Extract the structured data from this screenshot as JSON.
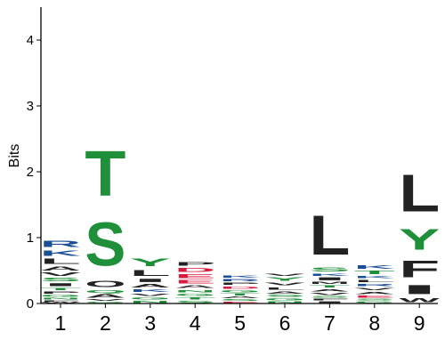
{
  "chart_data": {
    "type": "sequence-logo",
    "ylabel": "Bits",
    "ylim": [
      0,
      4.5
    ],
    "yticks": [
      0,
      1,
      2,
      3,
      4
    ],
    "positions": [
      {
        "label": "1",
        "letters": [
          {
            "char": "W",
            "height": 0.02,
            "color": "#222222"
          },
          {
            "char": "F",
            "height": 0.03,
            "color": "#222222"
          },
          {
            "char": "N",
            "height": 0.04,
            "color": "#1f8f3a"
          },
          {
            "char": "G",
            "height": 0.05,
            "color": "#1f8f3a"
          },
          {
            "char": "P",
            "height": 0.05,
            "color": "#222222"
          },
          {
            "char": "T",
            "height": 0.06,
            "color": "#1f8f3a"
          },
          {
            "char": "I",
            "height": 0.07,
            "color": "#222222"
          },
          {
            "char": "S",
            "height": 0.08,
            "color": "#1f8f3a"
          },
          {
            "char": "V",
            "height": 0.08,
            "color": "#222222"
          },
          {
            "char": "A",
            "height": 0.1,
            "color": "#222222"
          },
          {
            "char": "L",
            "height": 0.12,
            "color": "#222222"
          },
          {
            "char": "K",
            "height": 0.13,
            "color": "#1a4f96"
          },
          {
            "char": "R",
            "height": 0.15,
            "color": "#1a4f96"
          }
        ]
      },
      {
        "label": "2",
        "letters": [
          {
            "char": "G",
            "height": 0.03,
            "color": "#1f8f3a"
          },
          {
            "char": "V",
            "height": 0.04,
            "color": "#222222"
          },
          {
            "char": "A",
            "height": 0.08,
            "color": "#222222"
          },
          {
            "char": "Q",
            "height": 0.07,
            "color": "#1f8f3a"
          },
          {
            "char": "O",
            "height": 0.15,
            "color": "#222222"
          },
          {
            "char": "S",
            "height": 1.05,
            "color": "#1f8f3a"
          },
          {
            "char": "T",
            "height": 1.1,
            "color": "#1f8f3a"
          }
        ]
      },
      {
        "label": "3",
        "letters": [
          {
            "char": "N",
            "height": 0.05,
            "color": "#1f8f3a"
          },
          {
            "char": "G",
            "height": 0.05,
            "color": "#1f8f3a"
          },
          {
            "char": "V",
            "height": 0.06,
            "color": "#222222"
          },
          {
            "char": "K",
            "height": 0.07,
            "color": "#1a4f96"
          },
          {
            "char": "A",
            "height": 0.08,
            "color": "#222222"
          },
          {
            "char": "I",
            "height": 0.08,
            "color": "#222222"
          },
          {
            "char": "L",
            "height": 0.14,
            "color": "#222222"
          },
          {
            "char": "Y",
            "height": 0.18,
            "color": "#1f8f3a"
          }
        ]
      },
      {
        "label": "4",
        "letters": [
          {
            "char": "S",
            "height": 0.05,
            "color": "#1f8f3a"
          },
          {
            "char": "T",
            "height": 0.05,
            "color": "#1f8f3a"
          },
          {
            "char": "G",
            "height": 0.06,
            "color": "#1f8f3a"
          },
          {
            "char": "N",
            "height": 0.06,
            "color": "#1f8f3a"
          },
          {
            "char": "A",
            "height": 0.07,
            "color": "#222222"
          },
          {
            "char": "E",
            "height": 0.08,
            "color": "#d91a3c"
          },
          {
            "char": "E",
            "height": 0.09,
            "color": "#d91a3c"
          },
          {
            "char": "D",
            "height": 0.1,
            "color": "#d91a3c"
          },
          {
            "char": "P",
            "height": 0.08,
            "color": "#222222"
          }
        ]
      },
      {
        "label": "5",
        "letters": [
          {
            "char": "E",
            "height": 0.03,
            "color": "#d91a3c"
          },
          {
            "char": "S",
            "height": 0.04,
            "color": "#1f8f3a"
          },
          {
            "char": "A",
            "height": 0.04,
            "color": "#222222"
          },
          {
            "char": "T",
            "height": 0.05,
            "color": "#1f8f3a"
          },
          {
            "char": "G",
            "height": 0.05,
            "color": "#1f8f3a"
          },
          {
            "char": "D",
            "height": 0.06,
            "color": "#d91a3c"
          },
          {
            "char": "P",
            "height": 0.06,
            "color": "#222222"
          },
          {
            "char": "R",
            "height": 0.05,
            "color": "#1a4f96"
          },
          {
            "char": "K",
            "height": 0.06,
            "color": "#1a4f96"
          }
        ]
      },
      {
        "label": "6",
        "letters": [
          {
            "char": "N",
            "height": 0.04,
            "color": "#1f8f3a"
          },
          {
            "char": "G",
            "height": 0.05,
            "color": "#1f8f3a"
          },
          {
            "char": "S",
            "height": 0.05,
            "color": "#1f8f3a"
          },
          {
            "char": "A",
            "height": 0.06,
            "color": "#222222"
          },
          {
            "char": "L",
            "height": 0.06,
            "color": "#222222"
          },
          {
            "char": "V",
            "height": 0.07,
            "color": "#222222"
          },
          {
            "char": "Y",
            "height": 0.08,
            "color": "#1f8f3a"
          },
          {
            "char": "V",
            "height": 0.06,
            "color": "#222222"
          }
        ]
      },
      {
        "label": "7",
        "letters": [
          {
            "char": "I",
            "height": 0.04,
            "color": "#222222"
          },
          {
            "char": "F",
            "height": 0.04,
            "color": "#222222"
          },
          {
            "char": "S",
            "height": 0.04,
            "color": "#1f8f3a"
          },
          {
            "char": "V",
            "height": 0.05,
            "color": "#222222"
          },
          {
            "char": "A",
            "height": 0.06,
            "color": "#222222"
          },
          {
            "char": "T",
            "height": 0.06,
            "color": "#1f8f3a"
          },
          {
            "char": "M",
            "height": 0.05,
            "color": "#222222"
          },
          {
            "char": "I",
            "height": 0.07,
            "color": "#222222"
          },
          {
            "char": "K",
            "height": 0.06,
            "color": "#1a4f96"
          },
          {
            "char": "S",
            "height": 0.09,
            "color": "#1f8f3a"
          },
          {
            "char": "L",
            "height": 0.95,
            "color": "#222222"
          }
        ]
      },
      {
        "label": "8",
        "letters": [
          {
            "char": "G",
            "height": 0.04,
            "color": "#1f8f3a"
          },
          {
            "char": "S",
            "height": 0.04,
            "color": "#1f8f3a"
          },
          {
            "char": "E",
            "height": 0.05,
            "color": "#d91a3c"
          },
          {
            "char": "A",
            "height": 0.06,
            "color": "#222222"
          },
          {
            "char": "V",
            "height": 0.06,
            "color": "#222222"
          },
          {
            "char": "R",
            "height": 0.06,
            "color": "#1a4f96"
          },
          {
            "char": "L",
            "height": 0.06,
            "color": "#222222"
          },
          {
            "char": "K",
            "height": 0.06,
            "color": "#1a4f96"
          },
          {
            "char": "T",
            "height": 0.08,
            "color": "#1f8f3a"
          },
          {
            "char": "K",
            "height": 0.08,
            "color": "#1a4f96"
          }
        ]
      },
      {
        "label": "9",
        "letters": [
          {
            "char": "W",
            "height": 0.1,
            "color": "#222222"
          },
          {
            "char": "I",
            "height": 0.22,
            "color": "#222222"
          },
          {
            "char": "F",
            "height": 0.4,
            "color": "#222222"
          },
          {
            "char": "Y",
            "height": 0.5,
            "color": "#1f8f3a"
          },
          {
            "char": "L",
            "height": 0.9,
            "color": "#222222"
          }
        ]
      }
    ]
  }
}
